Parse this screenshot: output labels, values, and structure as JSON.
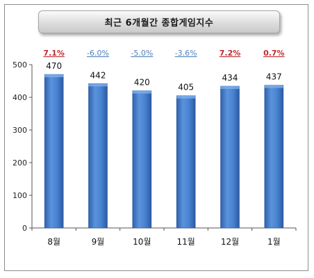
{
  "chart_data": {
    "type": "bar",
    "title": "최근 6개월간 종합게임지수",
    "categories": [
      "8월",
      "9월",
      "10월",
      "11월",
      "12월",
      "1월"
    ],
    "values": [
      470,
      442,
      420,
      405,
      434,
      437
    ],
    "changes": [
      {
        "label": "7.1%",
        "color": "#c0282e"
      },
      {
        "label": "-6.0%",
        "color": "#4f81bd"
      },
      {
        "label": "-5.0%",
        "color": "#4f81bd"
      },
      {
        "label": "-3.6%",
        "color": "#4f81bd"
      },
      {
        "label": "7.2%",
        "color": "#c0282e"
      },
      {
        "label": "0.7%",
        "color": "#c0282e"
      }
    ],
    "ylim": [
      0,
      500
    ],
    "yticks": [
      0,
      100,
      200,
      300,
      400,
      500
    ],
    "grid": false,
    "bar_color": "#3f78c6",
    "xlabel": "",
    "ylabel": ""
  }
}
